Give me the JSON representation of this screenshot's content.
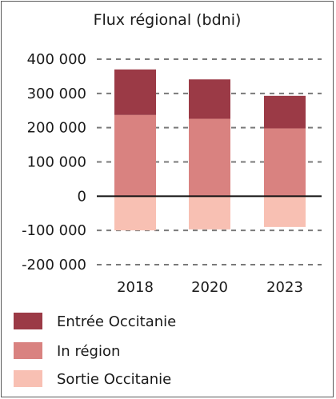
{
  "chart_data": {
    "type": "bar",
    "stacked": true,
    "title": "Flux régional (bdni)",
    "xlabel": "",
    "ylabel": "",
    "categories": [
      "2018",
      "2020",
      "2023"
    ],
    "ylim": [
      -200000,
      400000
    ],
    "yticks": [
      400000,
      300000,
      200000,
      100000,
      0,
      -100000,
      -200000
    ],
    "ytick_labels": [
      "400 000",
      "300 000",
      "200 000",
      "100 000",
      "0",
      "-100 000",
      "-200 000"
    ],
    "grid": "horizontal dashed",
    "legend_position": "bottom",
    "series": [
      {
        "name": "Entrée Occitanie",
        "color": "#9b3a46",
        "values": [
          133000,
          115000,
          95000
        ]
      },
      {
        "name": "In région",
        "color": "#d98280",
        "values": [
          237000,
          226000,
          198000
        ]
      },
      {
        "name": "Sortie Occitanie",
        "color": "#f8c0b3",
        "values": [
          -100000,
          -97000,
          -90000
        ]
      }
    ]
  }
}
